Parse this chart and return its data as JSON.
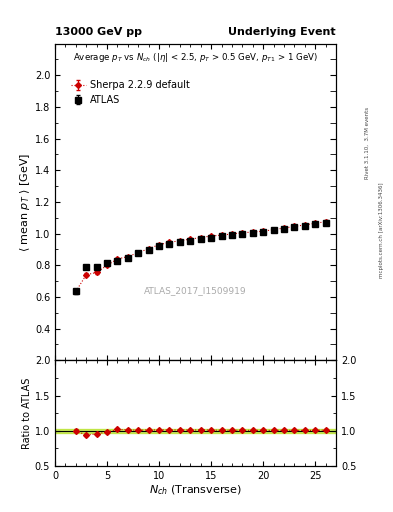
{
  "title_left": "13000 GeV pp",
  "title_right": "Underlying Event",
  "plot_title": "Average $p_T$ vs $N_{ch}$ ($|\\eta|$ < 2.5, $p_T$ > 0.5 GeV, $p_{T1}$ > 1 GeV)",
  "ylabel_main": "$\\langle$ mean $p_T$ $\\rangle$ [GeV]",
  "ylabel_ratio": "Ratio to ATLAS",
  "xlabel": "$N_{ch}$ (Transverse)",
  "watermark": "ATLAS_2017_I1509919",
  "right_label": "mcplots.cern.ch [arXiv:1306.3436]",
  "right_label2": "Rivet 3.1.10,  3.7M events",
  "ylim_main": [
    0.2,
    2.2
  ],
  "ylim_ratio": [
    0.5,
    2.0
  ],
  "yticks_main": [
    0.4,
    0.6,
    0.8,
    1.0,
    1.2,
    1.4,
    1.6,
    1.8,
    2.0
  ],
  "yticks_ratio": [
    0.5,
    1.0,
    1.5,
    2.0
  ],
  "xlim": [
    0,
    27
  ],
  "xticks": [
    0,
    5,
    10,
    15,
    20,
    25
  ],
  "atlas_x": [
    2,
    3,
    4,
    5,
    6,
    7,
    8,
    9,
    10,
    11,
    12,
    13,
    14,
    15,
    16,
    17,
    18,
    19,
    20,
    21,
    22,
    23,
    24,
    25,
    26
  ],
  "atlas_y": [
    0.635,
    0.79,
    0.79,
    0.815,
    0.825,
    0.845,
    0.875,
    0.895,
    0.92,
    0.935,
    0.945,
    0.955,
    0.965,
    0.975,
    0.985,
    0.99,
    1.0,
    1.005,
    1.01,
    1.02,
    1.03,
    1.04,
    1.05,
    1.06,
    1.065
  ],
  "atlas_yerr": [
    0.015,
    0.01,
    0.009,
    0.008,
    0.007,
    0.006,
    0.006,
    0.005,
    0.005,
    0.005,
    0.004,
    0.004,
    0.004,
    0.004,
    0.004,
    0.004,
    0.004,
    0.004,
    0.005,
    0.005,
    0.006,
    0.006,
    0.007,
    0.008,
    0.01
  ],
  "sherpa_x": [
    2,
    3,
    4,
    5,
    6,
    7,
    8,
    9,
    10,
    11,
    12,
    13,
    14,
    15,
    16,
    17,
    18,
    19,
    20,
    21,
    22,
    23,
    24,
    25,
    26
  ],
  "sherpa_y": [
    0.635,
    0.74,
    0.755,
    0.8,
    0.84,
    0.855,
    0.88,
    0.905,
    0.93,
    0.945,
    0.955,
    0.965,
    0.975,
    0.985,
    0.99,
    0.998,
    1.005,
    1.01,
    1.015,
    1.025,
    1.035,
    1.045,
    1.055,
    1.065,
    1.075
  ],
  "sherpa_yerr": [
    0.012,
    0.009,
    0.008,
    0.007,
    0.006,
    0.005,
    0.005,
    0.004,
    0.004,
    0.004,
    0.003,
    0.003,
    0.003,
    0.003,
    0.003,
    0.003,
    0.003,
    0.003,
    0.004,
    0.004,
    0.004,
    0.005,
    0.006,
    0.007,
    0.009
  ],
  "ratio_sherpa_y": [
    1.0,
    0.937,
    0.956,
    0.982,
    1.018,
    1.012,
    1.006,
    1.011,
    1.011,
    1.011,
    1.011,
    1.01,
    1.01,
    1.01,
    1.005,
    1.008,
    1.005,
    1.005,
    1.005,
    1.005,
    1.005,
    1.005,
    1.005,
    1.005,
    1.009
  ],
  "ratio_sherpa_yerr": [
    0.02,
    0.015,
    0.013,
    0.011,
    0.009,
    0.008,
    0.008,
    0.007,
    0.006,
    0.006,
    0.005,
    0.005,
    0.005,
    0.005,
    0.005,
    0.005,
    0.005,
    0.005,
    0.006,
    0.006,
    0.007,
    0.008,
    0.009,
    0.011,
    0.013
  ],
  "atlas_color": "#000000",
  "sherpa_color": "#cc0000",
  "atlas_marker": "s",
  "sherpa_marker": "D",
  "atlas_markersize": 4,
  "sherpa_markersize": 3,
  "legend_atlas": "ATLAS",
  "legend_sherpa": "Sherpa 2.2.9 default",
  "bg_color": "#ffffff",
  "ratio_band_color": "#aadd00",
  "ratio_band_alpha": 0.6
}
